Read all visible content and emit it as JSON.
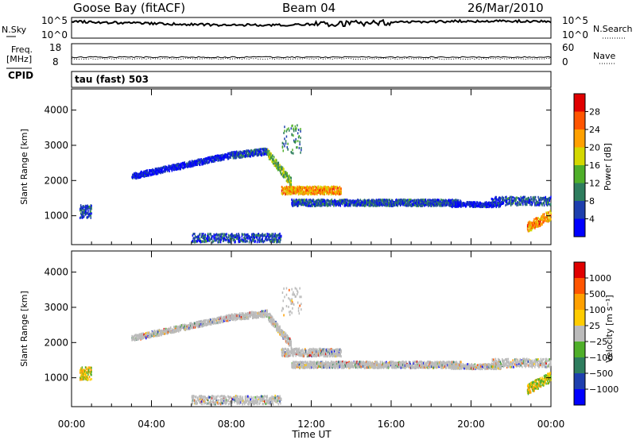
{
  "header": {
    "station": "Goose Bay (fitACF)",
    "beam": "Beam 04",
    "date": "26/Mar/2010"
  },
  "labels": {
    "nsky": "N.Sky",
    "nsearch": "N.Search",
    "freq_top": "Freq.",
    "freq_unit": "[MHz]",
    "nave": "Nave",
    "cpid": "CPID",
    "mode": "tau (fast) 503"
  },
  "colors": {
    "trace": "#000000",
    "power_scale": [
      "#0000ff",
      "#1e3fae",
      "#2e7d5e",
      "#4faf2a",
      "#d4d800",
      "#ffa000",
      "#ff5500",
      "#e00000"
    ],
    "velocity_scale": [
      "#0000ff",
      "#1e3fae",
      "#2e7d5e",
      "#4faf2a",
      "#bbbbbb",
      "#ffcc00",
      "#ffa000",
      "#ff5500",
      "#e00000"
    ],
    "ground_scatter": "#bbbbbb"
  },
  "chart_data": [
    {
      "type": "line",
      "name": "noise",
      "left_ticks": [
        "10^5",
        "10^0"
      ],
      "right_ticks": [
        "10^5",
        "10^0"
      ]
    },
    {
      "type": "line",
      "name": "freq-nave",
      "left_ticks": [
        "18",
        "8"
      ],
      "right_ticks": [
        "60",
        "0"
      ]
    },
    {
      "type": "heatmap",
      "name": "power",
      "ylabel": "Slant Range [km]",
      "yticks": [
        1000,
        2000,
        3000,
        4000
      ],
      "ylim": [
        180,
        4600
      ],
      "xlim": [
        0,
        24
      ],
      "colorbar": {
        "label": "Power [dB]",
        "ticks": [
          "28",
          "24",
          "20",
          "16",
          "12",
          "8",
          "4"
        ]
      }
    },
    {
      "type": "heatmap",
      "name": "velocity",
      "ylabel": "Slant Range [km]",
      "yticks": [
        1000,
        2000,
        3000,
        4000
      ],
      "ylim": [
        180,
        4600
      ],
      "xlim": [
        0,
        24
      ],
      "xlabel": "Time UT",
      "xticks": [
        "00:00",
        "04:00",
        "08:00",
        "12:00",
        "16:00",
        "20:00",
        "00:00"
      ],
      "colorbar": {
        "label": "Velocity [m s⁻¹]",
        "ticks": [
          "1000",
          "500",
          "100",
          "25",
          "−25",
          "−100",
          "−500",
          "−1000"
        ]
      }
    }
  ]
}
